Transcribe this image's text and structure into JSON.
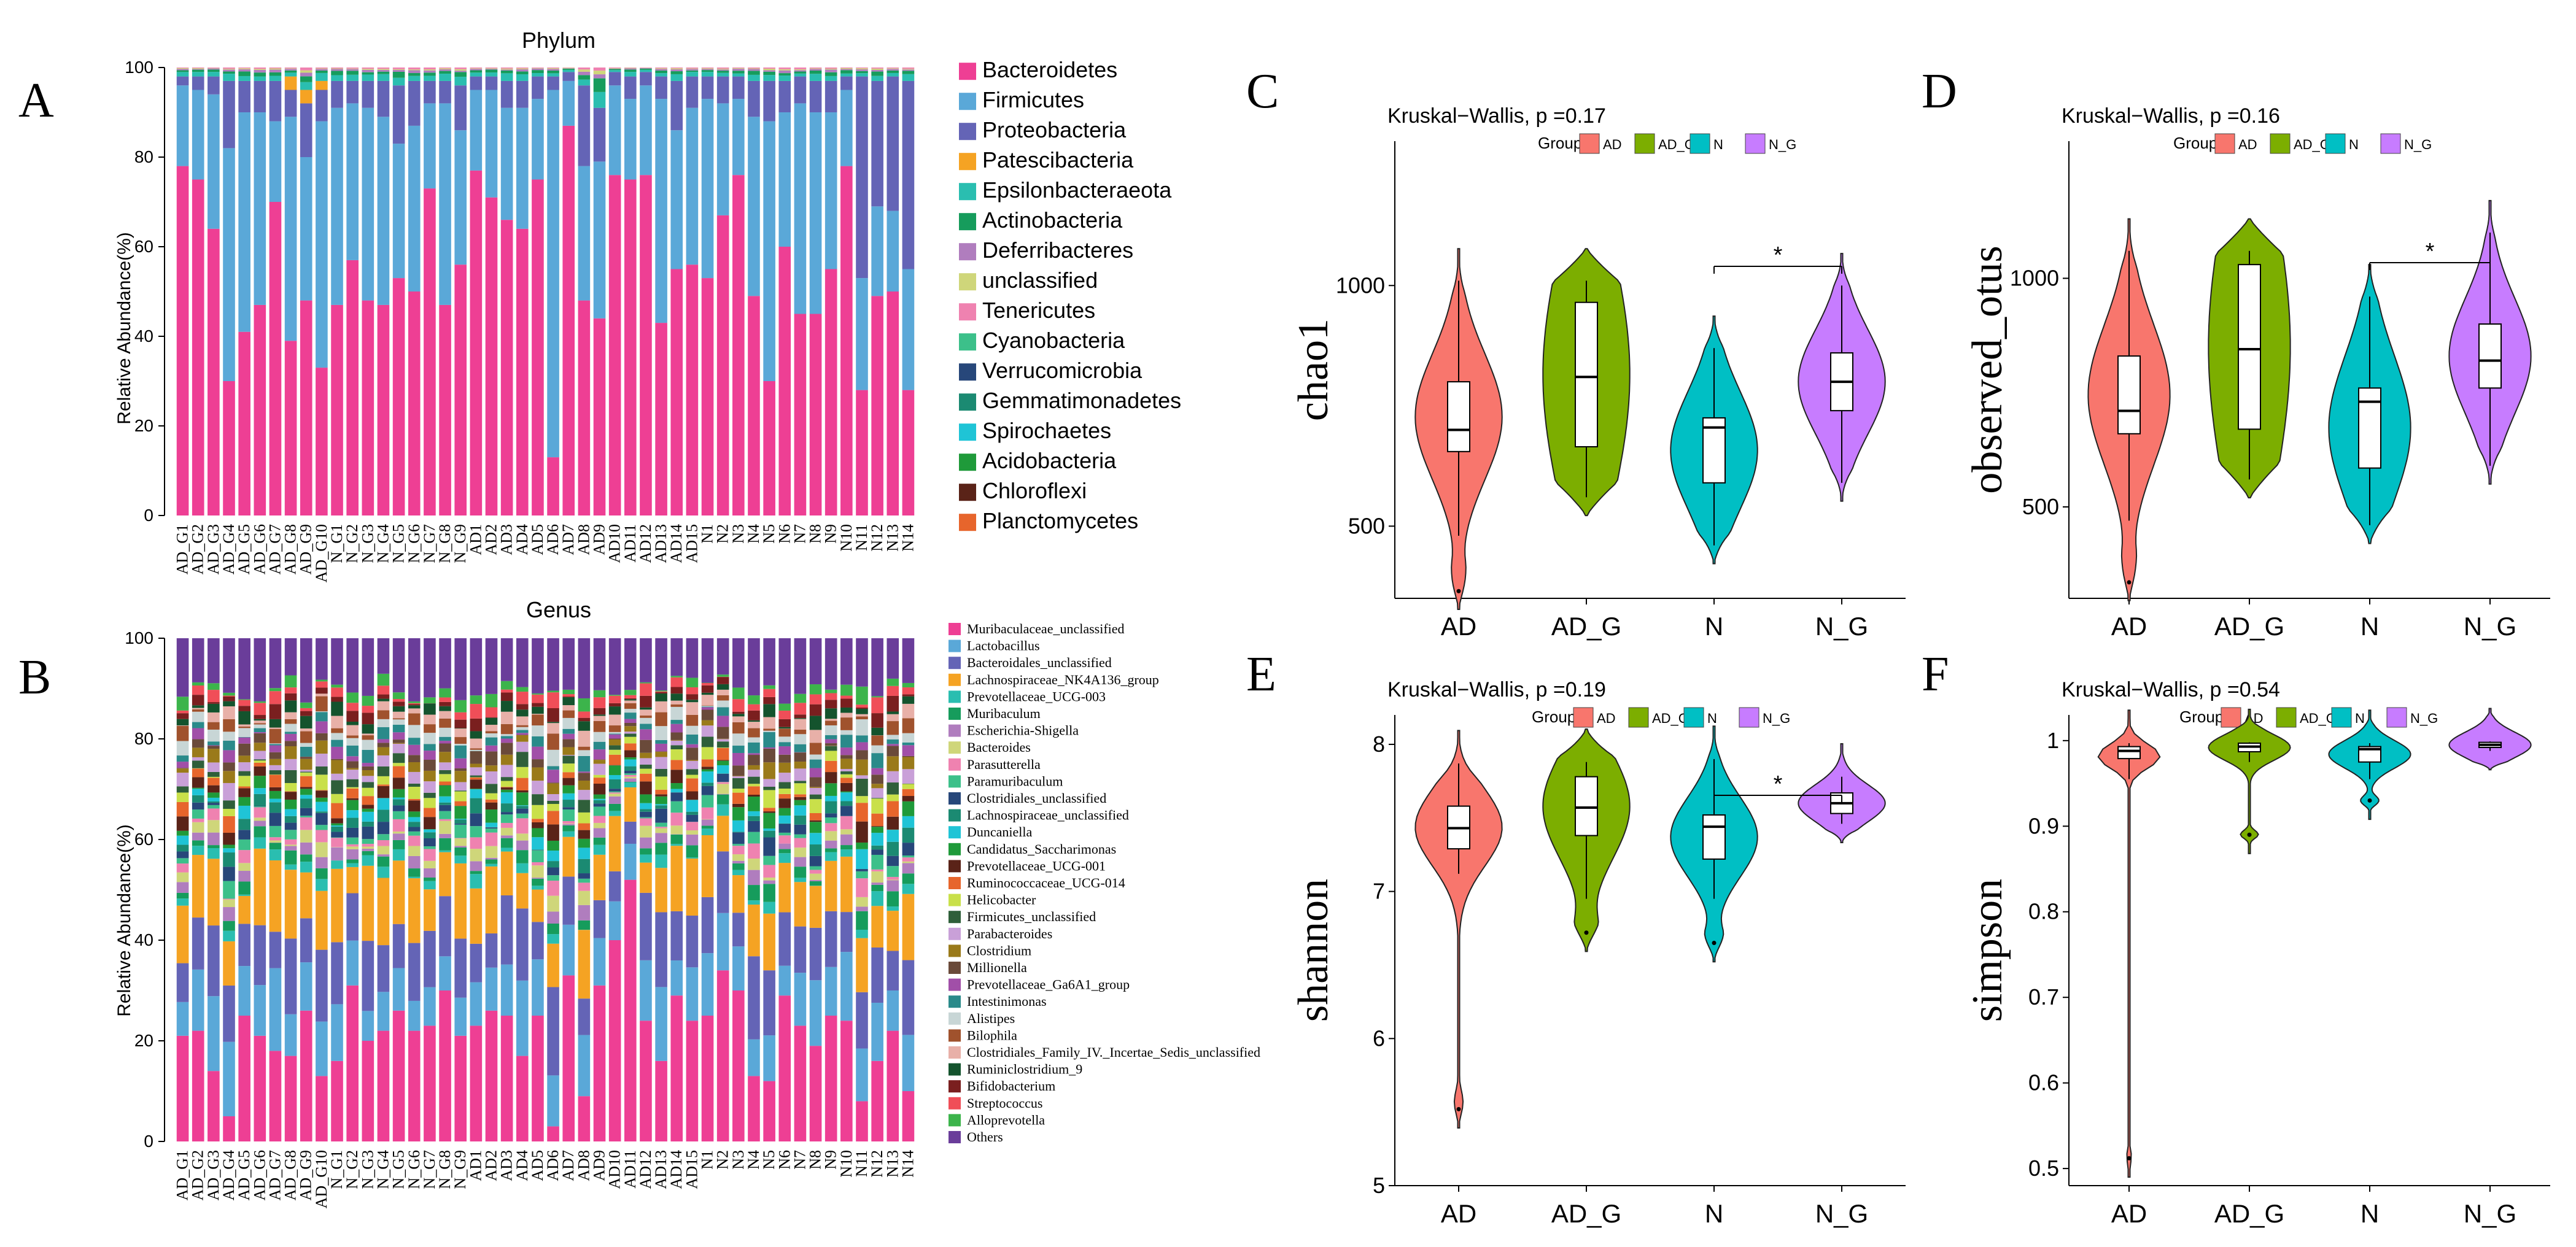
{
  "panel_labels": {
    "A": "A",
    "B": "B",
    "C": "C",
    "D": "D",
    "E": "E",
    "F": "F"
  },
  "samples": [
    "AD_G1",
    "AD_G2",
    "AD_G3",
    "AD_G4",
    "AD_G5",
    "AD_G6",
    "AD_G7",
    "AD_G8",
    "AD_G9",
    "AD_G10",
    "N_G1",
    "N_G2",
    "N_G3",
    "N_G4",
    "N_G5",
    "N_G6",
    "N_G7",
    "N_G8",
    "N_G9",
    "AD1",
    "AD2",
    "AD3",
    "AD4",
    "AD5",
    "AD6",
    "AD7",
    "AD8",
    "AD9",
    "AD10",
    "AD11",
    "AD12",
    "AD13",
    "AD14",
    "AD15",
    "N1",
    "N2",
    "N3",
    "N4",
    "N5",
    "N6",
    "N7",
    "N8",
    "N9",
    "N10",
    "N11",
    "N12",
    "N13",
    "N14"
  ],
  "chart_data": [
    {
      "id": "phylum",
      "type": "bar",
      "stacked": true,
      "title": "Phylum",
      "ylabel": "Relative Abundance(%)",
      "ylim": [
        0,
        100
      ],
      "yticks": [
        "0",
        "20",
        "40",
        "60",
        "80",
        "100"
      ],
      "legend": [
        {
          "name": "Bacteroidetes",
          "color": "#ee3f94"
        },
        {
          "name": "Firmicutes",
          "color": "#5aa8d8"
        },
        {
          "name": "Proteobacteria",
          "color": "#6464b6"
        },
        {
          "name": "Patescibacteria",
          "color": "#f5a323"
        },
        {
          "name": "Epsilonbacteraeota",
          "color": "#2abeb0"
        },
        {
          "name": "Actinobacteria",
          "color": "#169c5c"
        },
        {
          "name": "Deferribacteres",
          "color": "#b07dbe"
        },
        {
          "name": "unclassified",
          "color": "#cfd67a"
        },
        {
          "name": "Tenericutes",
          "color": "#ef82b0"
        },
        {
          "name": "Cyanobacteria",
          "color": "#3cc08a"
        },
        {
          "name": "Verrucomicrobia",
          "color": "#27477a"
        },
        {
          "name": "Gemmatimonadetes",
          "color": "#1b8a72"
        },
        {
          "name": "Spirochaetes",
          "color": "#1fc4d6"
        },
        {
          "name": "Acidobacteria",
          "color": "#1f9a3a"
        },
        {
          "name": "Chloroflexi",
          "color": "#5a2318"
        },
        {
          "name": "Planctomycetes",
          "color": "#e7652c"
        }
      ],
      "bacteroidetes": [
        78,
        75,
        64,
        30,
        41,
        47,
        70,
        39,
        48,
        33,
        47,
        57,
        48,
        47,
        53,
        50,
        73,
        47,
        56,
        77,
        71,
        66,
        64,
        75,
        13,
        87,
        48,
        44,
        76,
        75,
        76,
        43,
        55,
        56,
        53,
        67,
        76,
        49,
        30,
        60,
        45,
        45,
        55,
        78,
        28,
        49,
        50,
        28
      ],
      "firmicutes": [
        18,
        20,
        30,
        52,
        49,
        43,
        18,
        50,
        32,
        55,
        44,
        35,
        43,
        42,
        30,
        37,
        19,
        45,
        30,
        18,
        24,
        25,
        27,
        18,
        82,
        10,
        30,
        35,
        20,
        18,
        20,
        50,
        31,
        35,
        40,
        25,
        17,
        40,
        58,
        30,
        47,
        45,
        35,
        17,
        25,
        20,
        18,
        27
      ],
      "proteobacteria": [
        2,
        3,
        4,
        15,
        7,
        7,
        9,
        6,
        12,
        7,
        6,
        5,
        6,
        8,
        13,
        10,
        5,
        5,
        10,
        3,
        3,
        6,
        6,
        5,
        3,
        2,
        18,
        12,
        3,
        5,
        3,
        5,
        11,
        7,
        5,
        6,
        5,
        8,
        9,
        7,
        6,
        7,
        7,
        3,
        45,
        28,
        30,
        42
      ],
      "patescibacteria": [
        0,
        0,
        0,
        0,
        0,
        0,
        0,
        3,
        3,
        2,
        0,
        0,
        0,
        0,
        0,
        0,
        0,
        0,
        0,
        0,
        0,
        0,
        0,
        0,
        0,
        0,
        0,
        0,
        0,
        0,
        0,
        0,
        0,
        0,
        0,
        0,
        0,
        0,
        0,
        0,
        0,
        0,
        0,
        0,
        0,
        0,
        0,
        0
      ]
    },
    {
      "id": "genus",
      "type": "bar",
      "stacked": true,
      "title": "Genus",
      "ylabel": "Relative Abundance(%)",
      "ylim": [
        0,
        100
      ],
      "yticks": [
        "0",
        "20",
        "40",
        "60",
        "80",
        "100"
      ],
      "legend": [
        {
          "name": "Muribaculaceae_unclassified",
          "color": "#ee3f94"
        },
        {
          "name": "Lactobacillus",
          "color": "#5aa8d8"
        },
        {
          "name": "Bacteroidales_unclassified",
          "color": "#6464b6"
        },
        {
          "name": "Lachnospiraceae_NK4A136_group",
          "color": "#f5a323"
        },
        {
          "name": "Prevotellaceae_UCG-003",
          "color": "#2abeb0"
        },
        {
          "name": "Muribaculum",
          "color": "#169c5c"
        },
        {
          "name": "Escherichia-Shigella",
          "color": "#b07dbe"
        },
        {
          "name": "Bacteroides",
          "color": "#cfd67a"
        },
        {
          "name": "Parasutterella",
          "color": "#ef82b0"
        },
        {
          "name": "Paramuribaculum",
          "color": "#3cc08a"
        },
        {
          "name": "Clostridiales_unclassified",
          "color": "#27477a"
        },
        {
          "name": "Lachnospiraceae_unclassified",
          "color": "#1b8a72"
        },
        {
          "name": "Duncaniella",
          "color": "#1fc4d6"
        },
        {
          "name": "Candidatus_Saccharimonas",
          "color": "#1f9a3a"
        },
        {
          "name": "Prevotellaceae_UCG-001",
          "color": "#5a2318"
        },
        {
          "name": "Ruminococcaceae_UCG-014",
          "color": "#e7652c"
        },
        {
          "name": "Helicobacter",
          "color": "#c9e04a"
        },
        {
          "name": "Firmicutes_unclassified",
          "color": "#2f5f3a"
        },
        {
          "name": "Parabacteroides",
          "color": "#c9a0d8"
        },
        {
          "name": "Clostridium",
          "color": "#9a7a1a"
        },
        {
          "name": "Millionella",
          "color": "#6a4a3a"
        },
        {
          "name": "Prevotellaceae_Ga6A1_group",
          "color": "#a14fa8"
        },
        {
          "name": "Intestinimonas",
          "color": "#2a8a8a"
        },
        {
          "name": "Alistipes",
          "color": "#c8d6d6"
        },
        {
          "name": "Bilophila",
          "color": "#a0522d"
        },
        {
          "name": "Clostridiales_Family_IV._Incertae_Sedis_unclassified",
          "color": "#e8b0a8"
        },
        {
          "name": "Ruminiclostridium_9",
          "color": "#14532d"
        },
        {
          "name": "Bifidobacterium",
          "color": "#7a1f1f"
        },
        {
          "name": "Streptococcus",
          "color": "#f04e58"
        },
        {
          "name": "Alloprevotella",
          "color": "#3cb44b"
        },
        {
          "name": "Others",
          "color": "#6a3d9a"
        }
      ],
      "muribaculaceae": [
        21,
        22,
        14,
        5,
        25,
        21,
        18,
        17,
        26,
        13,
        16,
        31,
        20,
        22,
        26,
        22,
        23,
        30,
        21,
        23,
        26,
        25,
        17,
        25,
        3,
        33,
        9,
        31,
        40,
        52,
        24,
        16,
        29,
        24,
        25,
        34,
        30,
        13,
        12,
        29,
        23,
        19,
        25,
        24,
        8,
        16,
        22,
        10
      ]
    },
    {
      "id": "chao1",
      "type": "violin",
      "title": "Kruskal−Wallis, p =0.17",
      "ylabel": "chao1",
      "categories": [
        "AD",
        "AD_G",
        "N",
        "N_G"
      ],
      "ylim": [
        350,
        1300
      ],
      "yticks": [
        500,
        1000
      ],
      "legend_title": "Group",
      "significance": {
        "from": "N",
        "to": "N_G",
        "label": "*"
      },
      "groups": [
        {
          "name": "AD",
          "color": "#f8766d",
          "median": 700,
          "q1": 655,
          "q3": 800,
          "whisker_low": 480,
          "whisker_high": 1010,
          "outliers": [
            365
          ]
        },
        {
          "name": "AD_G",
          "color": "#7cae00",
          "median": 810,
          "q1": 665,
          "q3": 965,
          "whisker_low": 560,
          "whisker_high": 1010,
          "outliers": []
        },
        {
          "name": "N",
          "color": "#00bfc4",
          "median": 705,
          "q1": 590,
          "q3": 725,
          "whisker_low": 460,
          "whisker_high": 870,
          "outliers": []
        },
        {
          "name": "N_G",
          "color": "#c77cff",
          "median": 800,
          "q1": 740,
          "q3": 860,
          "whisker_low": 590,
          "whisker_high": 1000,
          "outliers": []
        }
      ]
    },
    {
      "id": "observed_otus",
      "type": "violin",
      "title": "Kruskal−Wallis, p =0.16",
      "ylabel": "observed_otus",
      "categories": [
        "AD",
        "AD_G",
        "N",
        "N_G"
      ],
      "ylim": [
        300,
        1300
      ],
      "yticks": [
        500,
        1000
      ],
      "legend_title": "Group",
      "significance": {
        "from": "N",
        "to": "N_G",
        "label": "*"
      },
      "groups": [
        {
          "name": "AD",
          "color": "#f8766d",
          "median": 710,
          "q1": 660,
          "q3": 830,
          "whisker_low": 470,
          "whisker_high": 1060,
          "outliers": [
            335
          ]
        },
        {
          "name": "AD_G",
          "color": "#7cae00",
          "median": 845,
          "q1": 670,
          "q3": 1030,
          "whisker_low": 560,
          "whisker_high": 1060,
          "outliers": []
        },
        {
          "name": "N",
          "color": "#00bfc4",
          "median": 730,
          "q1": 585,
          "q3": 760,
          "whisker_low": 460,
          "whisker_high": 960,
          "outliers": []
        },
        {
          "name": "N_G",
          "color": "#c77cff",
          "median": 820,
          "q1": 760,
          "q3": 900,
          "whisker_low": 590,
          "whisker_high": 1100,
          "outliers": []
        }
      ]
    },
    {
      "id": "shannon",
      "type": "violin",
      "title": "Kruskal−Wallis, p =0.19",
      "ylabel": "shannon",
      "categories": [
        "AD",
        "AD_G",
        "N",
        "N_G"
      ],
      "ylim": [
        5.0,
        8.2
      ],
      "yticks": [
        5,
        6,
        7,
        8
      ],
      "legend_title": "Group",
      "significance": {
        "from": "N",
        "to": "N_G",
        "label": "*"
      },
      "groups": [
        {
          "name": "AD",
          "color": "#f8766d",
          "median": 7.43,
          "q1": 7.29,
          "q3": 7.58,
          "whisker_low": 7.12,
          "whisker_high": 7.87,
          "outliers": [
            5.52
          ]
        },
        {
          "name": "AD_G",
          "color": "#7cae00",
          "median": 7.57,
          "q1": 7.38,
          "q3": 7.78,
          "whisker_low": 6.95,
          "whisker_high": 7.88,
          "outliers": [
            6.72
          ]
        },
        {
          "name": "N",
          "color": "#00bfc4",
          "median": 7.44,
          "q1": 7.22,
          "q3": 7.52,
          "whisker_low": 6.95,
          "whisker_high": 7.9,
          "outliers": [
            6.65
          ]
        },
        {
          "name": "N_G",
          "color": "#c77cff",
          "median": 7.6,
          "q1": 7.53,
          "q3": 7.67,
          "whisker_low": 7.46,
          "whisker_high": 7.78,
          "outliers": []
        }
      ]
    },
    {
      "id": "simpson",
      "type": "violin",
      "title": "Kruskal−Wallis, p =0.54",
      "ylabel": "simpson",
      "categories": [
        "AD",
        "AD_G",
        "N",
        "N_G"
      ],
      "ylim": [
        0.48,
        1.03
      ],
      "yticks": [
        0.5,
        0.6,
        0.7,
        0.8,
        0.9,
        1.0
      ],
      "legend_title": "Group",
      "significance": null,
      "groups": [
        {
          "name": "AD",
          "color": "#f8766d",
          "median": 0.988,
          "q1": 0.979,
          "q3": 0.993,
          "whisker_low": 0.955,
          "whisker_high": 0.997,
          "outliers": [
            0.512
          ]
        },
        {
          "name": "AD_G",
          "color": "#7cae00",
          "median": 0.993,
          "q1": 0.987,
          "q3": 0.997,
          "whisker_low": 0.975,
          "whisker_high": 0.998,
          "outliers": [
            0.89
          ]
        },
        {
          "name": "N",
          "color": "#00bfc4",
          "median": 0.99,
          "q1": 0.975,
          "q3": 0.993,
          "whisker_low": 0.955,
          "whisker_high": 0.997,
          "outliers": [
            0.93
          ]
        },
        {
          "name": "N_G",
          "color": "#c77cff",
          "median": 0.995,
          "q1": 0.992,
          "q3": 0.998,
          "whisker_low": 0.988,
          "whisker_high": 0.999,
          "outliers": []
        }
      ]
    }
  ]
}
